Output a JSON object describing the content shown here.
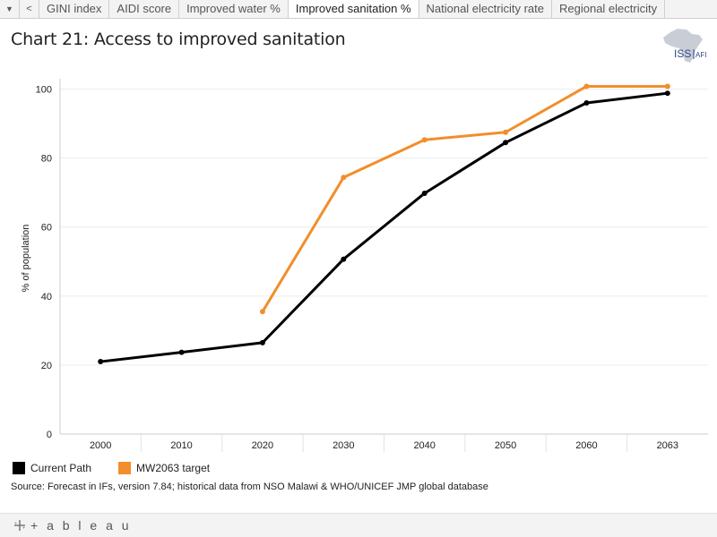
{
  "tabs": {
    "items": [
      "GINI index",
      "AIDI score",
      "Improved water %",
      "Improved sanitation %",
      "National electricity rate",
      "Regional electricity"
    ],
    "active_index": 3
  },
  "page_title": "Chart 21: Access to improved sanitation",
  "logo": {
    "text_main": "ISS",
    "text_sub": "AFI"
  },
  "colors": {
    "current_path": "#000000",
    "target": "#f28e2b"
  },
  "chart_data": {
    "type": "line",
    "title": "Chart 21: Access to improved sanitation",
    "xlabel": "",
    "ylabel": "% of population",
    "categories": [
      "2000",
      "2010",
      "2020",
      "2030",
      "2040",
      "2050",
      "2060",
      "2063"
    ],
    "yticks": [
      0,
      20,
      40,
      60,
      80,
      100
    ],
    "ylim": [
      0,
      103
    ],
    "grid": true,
    "legend_position": "bottom-left",
    "series": [
      {
        "name": "Current Path",
        "color": "#000000",
        "values": [
          21,
          23.7,
          26.5,
          50.7,
          69.8,
          84.5,
          96,
          98.8
        ]
      },
      {
        "name": "MW2063 target",
        "color": "#f28e2b",
        "values": [
          null,
          null,
          35.5,
          74.4,
          85.3,
          87.5,
          100.8,
          100.8
        ]
      }
    ]
  },
  "legend": {
    "items": [
      "Current Path",
      "MW2063 target"
    ]
  },
  "source": "Source: Forecast in IFs, version 7.84; historical data from NSO Malawi & WHO/UNICEF JMP global database",
  "footer": {
    "brand": "+ a b l e a u"
  }
}
